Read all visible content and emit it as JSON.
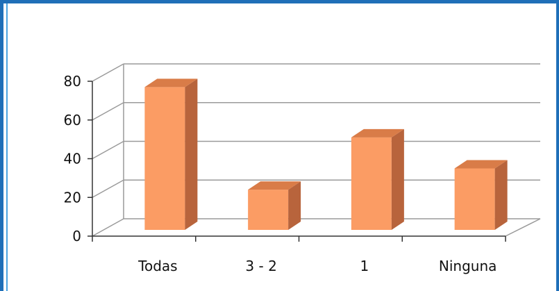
{
  "chart_data": {
    "type": "bar",
    "categories": [
      "Todas",
      "3 - 2",
      "1",
      "Ninguna"
    ],
    "values": [
      77,
      24,
      51,
      35
    ],
    "title": "",
    "xlabel": "",
    "ylabel": "",
    "ylim": [
      0,
      80
    ],
    "yticks": [
      "0",
      "20",
      "40",
      "60",
      "80"
    ],
    "grid": true,
    "legend": "none",
    "colors": {
      "bar_front": "#fb9c64",
      "bar_side": "#b8643c",
      "bar_top": "#d97c48",
      "grid": "#9a9a9a",
      "frame": "#1f6fb8"
    }
  }
}
